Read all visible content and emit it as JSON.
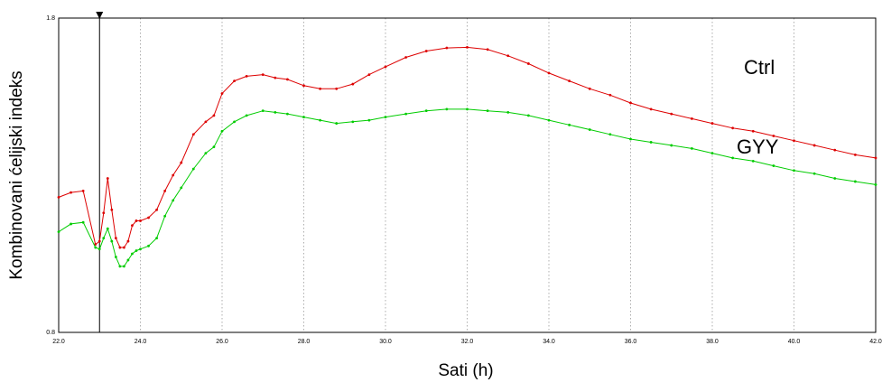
{
  "chart_data": {
    "type": "line",
    "title": "",
    "xlabel": "Sati (h)",
    "ylabel": "Kombinovani ćelijski indeks",
    "xlim": [
      22.0,
      42.0
    ],
    "ylim": [
      0.8,
      1.8
    ],
    "x_ticks": [
      "22.0",
      "24.0",
      "26.0",
      "28.0",
      "30.0",
      "32.0",
      "34.0",
      "36.0",
      "38.0",
      "40.0",
      "42.0"
    ],
    "y_ticks": [
      "0.8",
      "1.8"
    ],
    "grid": true,
    "marker_x": 23.0,
    "colors": {
      "ctrl": "#dd0000",
      "gyy": "#00cc00",
      "marker": "#000000"
    },
    "series": [
      {
        "name": "Ctrl",
        "color": "#dd0000",
        "points": [
          [
            22.0,
            1.23
          ],
          [
            22.3,
            1.245
          ],
          [
            22.6,
            1.25
          ],
          [
            22.9,
            1.08
          ],
          [
            23.0,
            1.09
          ],
          [
            23.1,
            1.18
          ],
          [
            23.2,
            1.29
          ],
          [
            23.3,
            1.19
          ],
          [
            23.4,
            1.1
          ],
          [
            23.5,
            1.07
          ],
          [
            23.6,
            1.07
          ],
          [
            23.7,
            1.09
          ],
          [
            23.8,
            1.14
          ],
          [
            23.9,
            1.155
          ],
          [
            24.0,
            1.155
          ],
          [
            24.2,
            1.165
          ],
          [
            24.4,
            1.19
          ],
          [
            24.6,
            1.25
          ],
          [
            24.8,
            1.3
          ],
          [
            25.0,
            1.34
          ],
          [
            25.3,
            1.43
          ],
          [
            25.6,
            1.47
          ],
          [
            25.8,
            1.49
          ],
          [
            26.0,
            1.56
          ],
          [
            26.3,
            1.6
          ],
          [
            26.6,
            1.615
          ],
          [
            27.0,
            1.62
          ],
          [
            27.3,
            1.61
          ],
          [
            27.6,
            1.605
          ],
          [
            28.0,
            1.585
          ],
          [
            28.4,
            1.575
          ],
          [
            28.8,
            1.575
          ],
          [
            29.2,
            1.59
          ],
          [
            29.6,
            1.62
          ],
          [
            30.0,
            1.645
          ],
          [
            30.5,
            1.675
          ],
          [
            31.0,
            1.695
          ],
          [
            31.5,
            1.705
          ],
          [
            32.0,
            1.707
          ],
          [
            32.5,
            1.7
          ],
          [
            33.0,
            1.68
          ],
          [
            33.5,
            1.655
          ],
          [
            34.0,
            1.625
          ],
          [
            34.5,
            1.6
          ],
          [
            35.0,
            1.575
          ],
          [
            35.5,
            1.555
          ],
          [
            36.0,
            1.53
          ],
          [
            36.5,
            1.51
          ],
          [
            37.0,
            1.495
          ],
          [
            37.5,
            1.48
          ],
          [
            38.0,
            1.465
          ],
          [
            38.5,
            1.45
          ],
          [
            39.0,
            1.44
          ],
          [
            39.5,
            1.425
          ],
          [
            40.0,
            1.41
          ],
          [
            40.5,
            1.395
          ],
          [
            41.0,
            1.38
          ],
          [
            41.5,
            1.365
          ],
          [
            42.0,
            1.355
          ]
        ]
      },
      {
        "name": "GYY",
        "color": "#00cc00",
        "points": [
          [
            22.0,
            1.12
          ],
          [
            22.3,
            1.145
          ],
          [
            22.6,
            1.15
          ],
          [
            22.9,
            1.07
          ],
          [
            23.0,
            1.065
          ],
          [
            23.1,
            1.1
          ],
          [
            23.2,
            1.13
          ],
          [
            23.3,
            1.09
          ],
          [
            23.4,
            1.04
          ],
          [
            23.5,
            1.01
          ],
          [
            23.6,
            1.01
          ],
          [
            23.7,
            1.03
          ],
          [
            23.8,
            1.05
          ],
          [
            23.9,
            1.06
          ],
          [
            24.0,
            1.065
          ],
          [
            24.2,
            1.075
          ],
          [
            24.4,
            1.1
          ],
          [
            24.6,
            1.17
          ],
          [
            24.8,
            1.22
          ],
          [
            25.0,
            1.26
          ],
          [
            25.3,
            1.32
          ],
          [
            25.6,
            1.37
          ],
          [
            25.8,
            1.39
          ],
          [
            26.0,
            1.44
          ],
          [
            26.3,
            1.47
          ],
          [
            26.6,
            1.49
          ],
          [
            27.0,
            1.505
          ],
          [
            27.3,
            1.5
          ],
          [
            27.6,
            1.495
          ],
          [
            28.0,
            1.485
          ],
          [
            28.4,
            1.475
          ],
          [
            28.8,
            1.465
          ],
          [
            29.2,
            1.47
          ],
          [
            29.6,
            1.475
          ],
          [
            30.0,
            1.485
          ],
          [
            30.5,
            1.495
          ],
          [
            31.0,
            1.505
          ],
          [
            31.5,
            1.51
          ],
          [
            32.0,
            1.51
          ],
          [
            32.5,
            1.505
          ],
          [
            33.0,
            1.5
          ],
          [
            33.5,
            1.49
          ],
          [
            34.0,
            1.475
          ],
          [
            34.5,
            1.46
          ],
          [
            35.0,
            1.445
          ],
          [
            35.5,
            1.43
          ],
          [
            36.0,
            1.415
          ],
          [
            36.5,
            1.405
          ],
          [
            37.0,
            1.395
          ],
          [
            37.5,
            1.385
          ],
          [
            38.0,
            1.37
          ],
          [
            38.5,
            1.355
          ],
          [
            39.0,
            1.345
          ],
          [
            39.5,
            1.33
          ],
          [
            40.0,
            1.315
          ],
          [
            40.5,
            1.305
          ],
          [
            41.0,
            1.29
          ],
          [
            41.5,
            1.28
          ],
          [
            42.0,
            1.27
          ]
        ]
      }
    ]
  }
}
